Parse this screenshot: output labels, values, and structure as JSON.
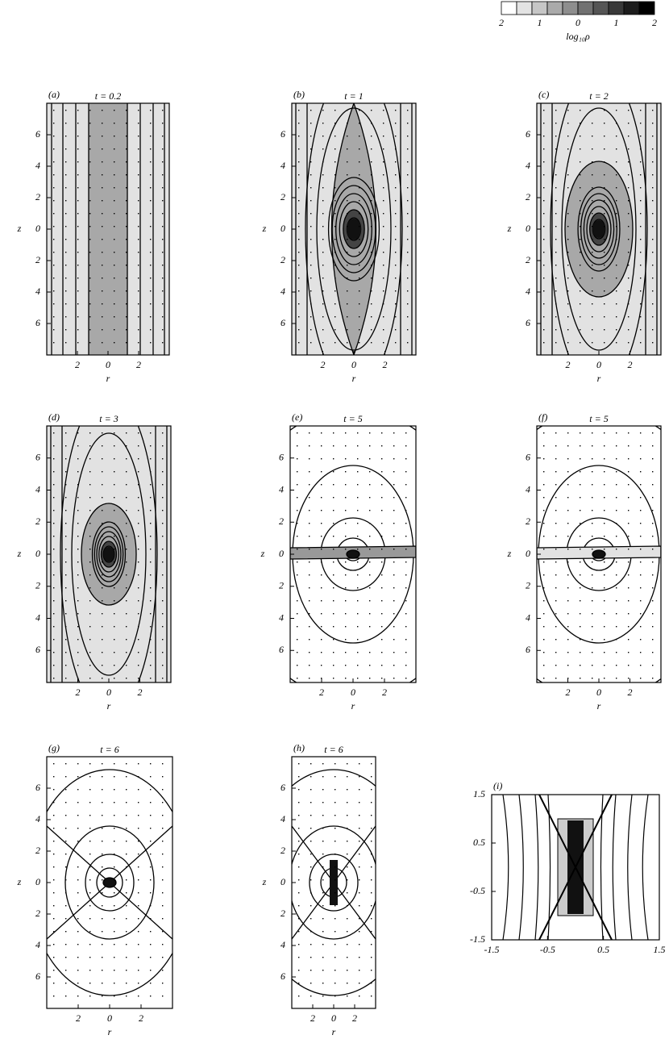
{
  "colorbar": {
    "ticks": [
      "2",
      "1",
      "0",
      "1",
      "2"
    ],
    "label": "log₁₀ρ"
  },
  "panels": [
    {
      "label": "(a)",
      "title": "t = 0.2",
      "yticks": [
        "6",
        "4",
        "2",
        "0",
        "2",
        "4",
        "6"
      ],
      "xticks": [
        "2",
        "0",
        "2"
      ],
      "ylabel": "z",
      "xlabel": "r"
    },
    {
      "label": "(b)",
      "title": "t = 1",
      "yticks": [
        "6",
        "4",
        "2",
        "0",
        "2",
        "4",
        "6"
      ],
      "xticks": [
        "2",
        "0",
        "2"
      ],
      "ylabel": "z",
      "xlabel": "r"
    },
    {
      "label": "(c)",
      "title": "t = 2",
      "yticks": [
        "6",
        "4",
        "2",
        "0",
        "2",
        "4",
        "6"
      ],
      "xticks": [
        "2",
        "0",
        "2"
      ],
      "ylabel": "z",
      "xlabel": "r"
    },
    {
      "label": "(d)",
      "title": "t = 3",
      "yticks": [
        "6",
        "4",
        "2",
        "0",
        "2",
        "4",
        "6"
      ],
      "xticks": [
        "2",
        "0",
        "2"
      ],
      "ylabel": "z",
      "xlabel": "r"
    },
    {
      "label": "(e)",
      "title": "t = 5",
      "yticks": [
        "6",
        "4",
        "2",
        "0",
        "2",
        "4",
        "6"
      ],
      "xticks": [
        "2",
        "0",
        "2"
      ],
      "ylabel": "z",
      "xlabel": "r"
    },
    {
      "label": "(f)",
      "title": "t = 5",
      "yticks": [
        "6",
        "4",
        "2",
        "0",
        "2",
        "4",
        "6"
      ],
      "xticks": [
        "2",
        "0",
        "2"
      ],
      "ylabel": "z",
      "xlabel": "r"
    },
    {
      "label": "(g)",
      "title": "t = 6",
      "yticks": [
        "6",
        "4",
        "2",
        "0",
        "2",
        "4",
        "6"
      ],
      "xticks": [
        "2",
        "0",
        "2"
      ],
      "ylabel": "z",
      "xlabel": "r"
    },
    {
      "label": "(h)",
      "title": "t = 6",
      "yticks": [
        "6",
        "4",
        "2",
        "0",
        "2",
        "4",
        "6"
      ],
      "xticks": [
        "2",
        "0",
        "2"
      ],
      "ylabel": "z",
      "xlabel": "r"
    },
    {
      "label": "(i)",
      "title": "",
      "yticks": [
        "1.5",
        "0.5",
        "-0.5",
        "-1.5"
      ],
      "xticks": [
        "-1.5",
        "-0.5",
        "0.5",
        "1.5"
      ]
    }
  ]
}
